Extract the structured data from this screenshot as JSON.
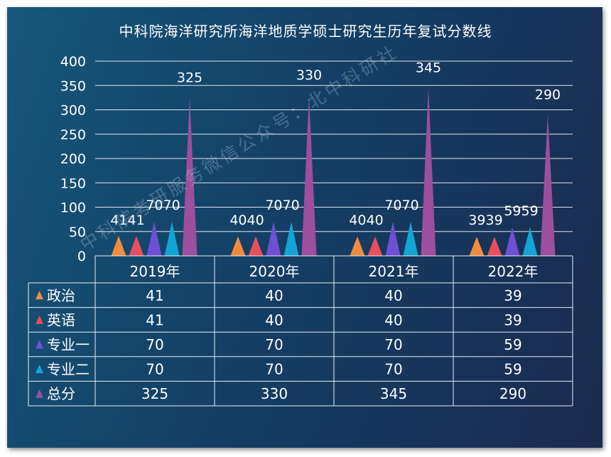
{
  "chart_data": {
    "type": "bar",
    "title": "中科院海洋研究所海洋地质学硕士研究生历年复试分数线",
    "categories": [
      "2019年",
      "2020年",
      "2021年",
      "2022年"
    ],
    "ylim": [
      0,
      400
    ],
    "yticks": [
      0,
      50,
      100,
      150,
      200,
      250,
      300,
      350,
      400
    ],
    "grid": true,
    "bar_shape": "triangle",
    "has_data_table": true,
    "series": [
      {
        "name": "政治",
        "color": "#f08c3e",
        "values": [
          41,
          40,
          40,
          39
        ]
      },
      {
        "name": "英语",
        "color": "#e94e5d",
        "values": [
          41,
          40,
          40,
          39
        ]
      },
      {
        "name": "专业一",
        "color": "#6f4fd4",
        "values": [
          70,
          70,
          70,
          59
        ]
      },
      {
        "name": "专业二",
        "color": "#13a4d6",
        "values": [
          70,
          70,
          70,
          59
        ]
      },
      {
        "name": "总分",
        "color": "#9c4f9e",
        "values": [
          325,
          330,
          345,
          290
        ]
      }
    ]
  },
  "watermark": "中科院考研服务微信公众号：北中科研社"
}
